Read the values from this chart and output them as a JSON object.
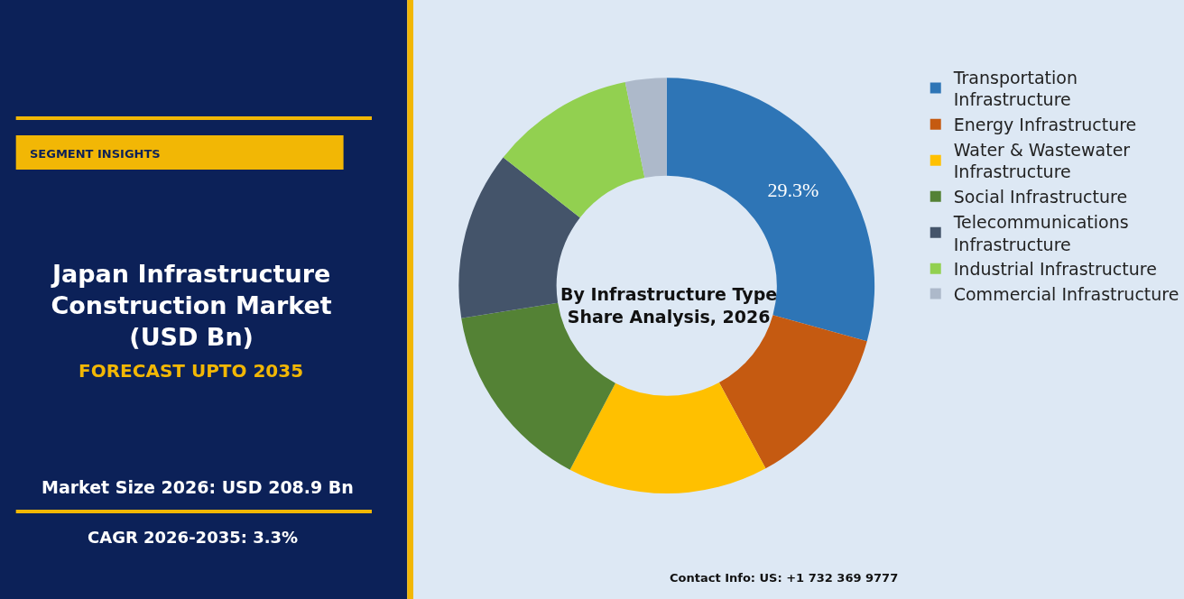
{
  "chart_data": {
    "type": "donut",
    "title": "Japan Infrastructure Construction Market (USD Bn)",
    "subtitle": "FORECAST UPTO 2035",
    "annotations": [
      "SEGMENT INSIGHTS",
      "By Infrastructure Type Share Analysis, 2026",
      "Market Size 2026: USD 208.9 Bn",
      "CAGR 2026-2035: 3.3%",
      "Contact Info: US: +1 732 369 9777"
    ],
    "categories": [
      "Transportation Infrastructure",
      "Energy Infrastructure",
      "Water & Wastewater Infrastructure",
      "Social Infrastructure",
      "Telecommunications Infrastructure",
      "Industrial Infrastructure",
      "Commercial Infrastructure"
    ],
    "values": [
      29.3,
      12.8,
      15.6,
      14.8,
      13.1,
      11.2,
      3.2
    ],
    "value_labels": [
      "29.3%",
      null,
      null,
      null,
      null,
      null,
      null
    ],
    "colors": [
      "#2e75b6",
      "#c55a11",
      "#ffc000",
      "#548235",
      "#44546a",
      "#92d050",
      "#adb9ca"
    ],
    "legend": "right"
  }
}
